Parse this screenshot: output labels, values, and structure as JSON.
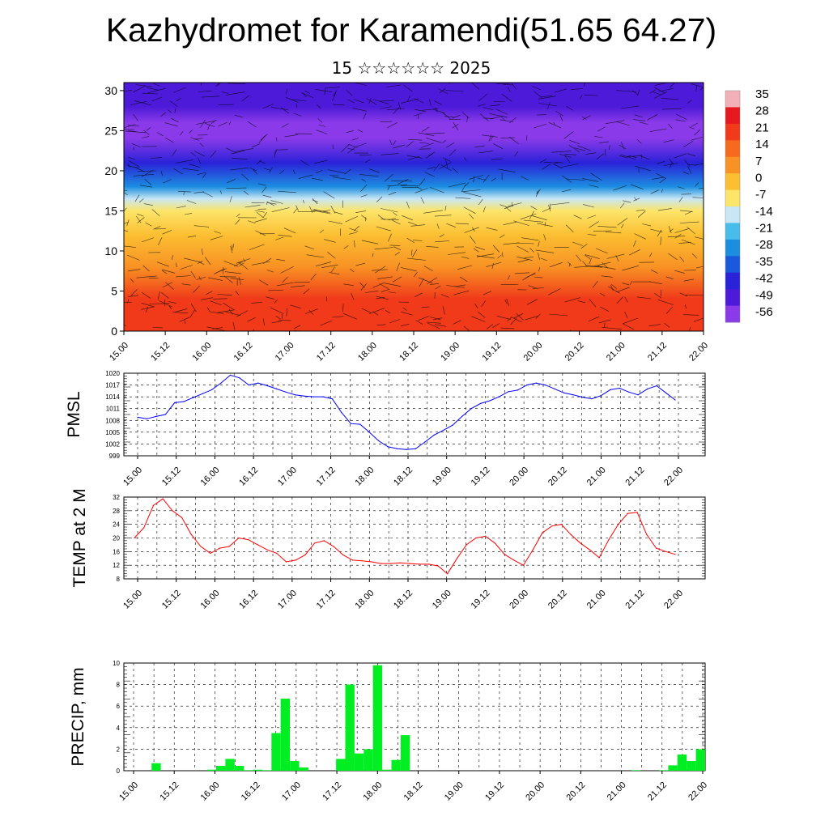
{
  "title": "Kazhydromet for Karamendi(51.65 64.27)",
  "subtitle": "15 ☆☆☆☆☆☆ 2025",
  "chart_data": [
    {
      "type": "heatmap",
      "description_key": "cross-section",
      "x_ticks": [
        "15.00",
        "15.12",
        "16.00",
        "16.12",
        "17.00",
        "17.12",
        "18.00",
        "18.12",
        "19.00",
        "19.12",
        "20.00",
        "20.12",
        "21.00",
        "21.12",
        "22.00"
      ],
      "y_ticks": [
        "0",
        "5",
        "10",
        "15",
        "20",
        "25",
        "30"
      ],
      "ylim": [
        0,
        31
      ],
      "colorbar_labels": [
        "35",
        "28",
        "21",
        "14",
        "7",
        "0",
        "-7",
        "-14",
        "-21",
        "-28",
        "-35",
        "-42",
        "-49",
        "-56"
      ],
      "colorbar_colors": [
        "#f4b0b8",
        "#e81820",
        "#f03a1a",
        "#f56a1c",
        "#f89224",
        "#fbbf32",
        "#fde56a",
        "#c8e6f4",
        "#48bcea",
        "#1c8ee0",
        "#1a58dc",
        "#2a22d8",
        "#4c1ad8",
        "#8a3ae8"
      ],
      "temperature_profile": {
        "heights": [
          0,
          4,
          8,
          12,
          15,
          16.5,
          18,
          21,
          24,
          26,
          28,
          31
        ],
        "values": [
          24,
          18,
          9,
          0,
          -9,
          -16,
          -26,
          -42,
          -53,
          -54,
          -50,
          -46
        ]
      }
    },
    {
      "type": "line",
      "ylabel": "PMSL",
      "x_ticks": [
        "15.00",
        "15.12",
        "16.00",
        "16.12",
        "17.00",
        "17.12",
        "18.00",
        "18.12",
        "19.00",
        "19.12",
        "20.00",
        "20.12",
        "21.00",
        "21.12",
        "22.00"
      ],
      "y_ticks": [
        "1020",
        "1017",
        "1014",
        "1011",
        "1008",
        "1005",
        "1002",
        "999"
      ],
      "ylim": [
        999,
        1020
      ],
      "color": "#0000ff",
      "values": [
        1008.8,
        1008.4,
        1009.0,
        1009.5,
        1012.5,
        1012.8,
        1013.8,
        1014.8,
        1015.8,
        1017.5,
        1019.5,
        1018.8,
        1017.0,
        1017.5,
        1016.8,
        1016.0,
        1015.2,
        1014.5,
        1014.2,
        1014.0,
        1014.0,
        1013.5,
        1010.0,
        1007.2,
        1007.0,
        1005.0,
        1002.8,
        1001.3,
        1000.8,
        1000.6,
        1000.8,
        1002.5,
        1004.3,
        1005.5,
        1006.8,
        1009.0,
        1011.0,
        1012.3,
        1013.0,
        1014.0,
        1015.3,
        1015.7,
        1017.0,
        1017.5,
        1017.0,
        1016.0,
        1015.0,
        1014.5,
        1013.9,
        1013.5,
        1014.3,
        1015.8,
        1016.2,
        1015.2,
        1014.5,
        1016.0,
        1016.8,
        1015.0,
        1013.2
      ]
    },
    {
      "type": "line",
      "ylabel": "TEMP at 2 M",
      "x_ticks": [
        "15.00",
        "15.12",
        "16.00",
        "16.12",
        "17.00",
        "17.12",
        "18.00",
        "18.12",
        "19.00",
        "19.12",
        "20.00",
        "20.12",
        "21.00",
        "21.12",
        "22.00"
      ],
      "y_ticks": [
        "32",
        "28",
        "24",
        "20",
        "16",
        "12",
        "8"
      ],
      "ylim": [
        8,
        32
      ],
      "color": "#ff0000",
      "values": [
        20,
        23,
        29.5,
        31.5,
        28,
        26,
        21,
        17.5,
        15.5,
        17,
        17.5,
        20,
        19.5,
        18,
        16.5,
        15.5,
        13,
        13.5,
        15,
        18.5,
        19.2,
        17.5,
        15,
        13.5,
        13.3,
        13,
        12.5,
        12.5,
        12.7,
        12.5,
        12.3,
        12.3,
        11.8,
        9.5,
        14,
        18,
        20,
        20.5,
        18.5,
        15.2,
        13.5,
        12,
        16.5,
        21.5,
        23.5,
        24,
        21,
        18.5,
        16.5,
        14.2,
        19.5,
        24,
        27.2,
        27.5,
        21,
        17,
        16,
        15.2
      ]
    },
    {
      "type": "bar",
      "ylabel": "PRECIP, mm",
      "x_ticks": [
        "15.00",
        "15.12",
        "16.00",
        "16.12",
        "17.00",
        "17.12",
        "18.00",
        "18.12",
        "19.00",
        "19.12",
        "20.00",
        "20.12",
        "21.00",
        "21.12",
        "22.00"
      ],
      "y_ticks": [
        "10",
        "8",
        "6",
        "4",
        "2",
        "0"
      ],
      "ylim": [
        0,
        10
      ],
      "color": "#00ee22",
      "values": [
        0,
        0,
        0,
        0.7,
        0,
        0,
        0,
        0,
        0,
        0.1,
        0.45,
        1.1,
        0.45,
        0.05,
        0.1,
        0.05,
        3.5,
        6.7,
        0.9,
        0.3,
        0,
        0,
        0,
        1.1,
        8,
        1.6,
        2,
        9.8,
        0.1,
        1,
        3.3,
        0,
        0,
        0,
        0,
        0,
        0,
        0,
        0,
        0,
        0,
        0,
        0,
        0,
        0,
        0,
        0,
        0,
        0,
        0,
        0,
        0,
        0,
        0,
        0,
        0.05,
        0,
        0,
        0.05,
        0.5,
        1.5,
        0.9,
        2
      ]
    }
  ]
}
